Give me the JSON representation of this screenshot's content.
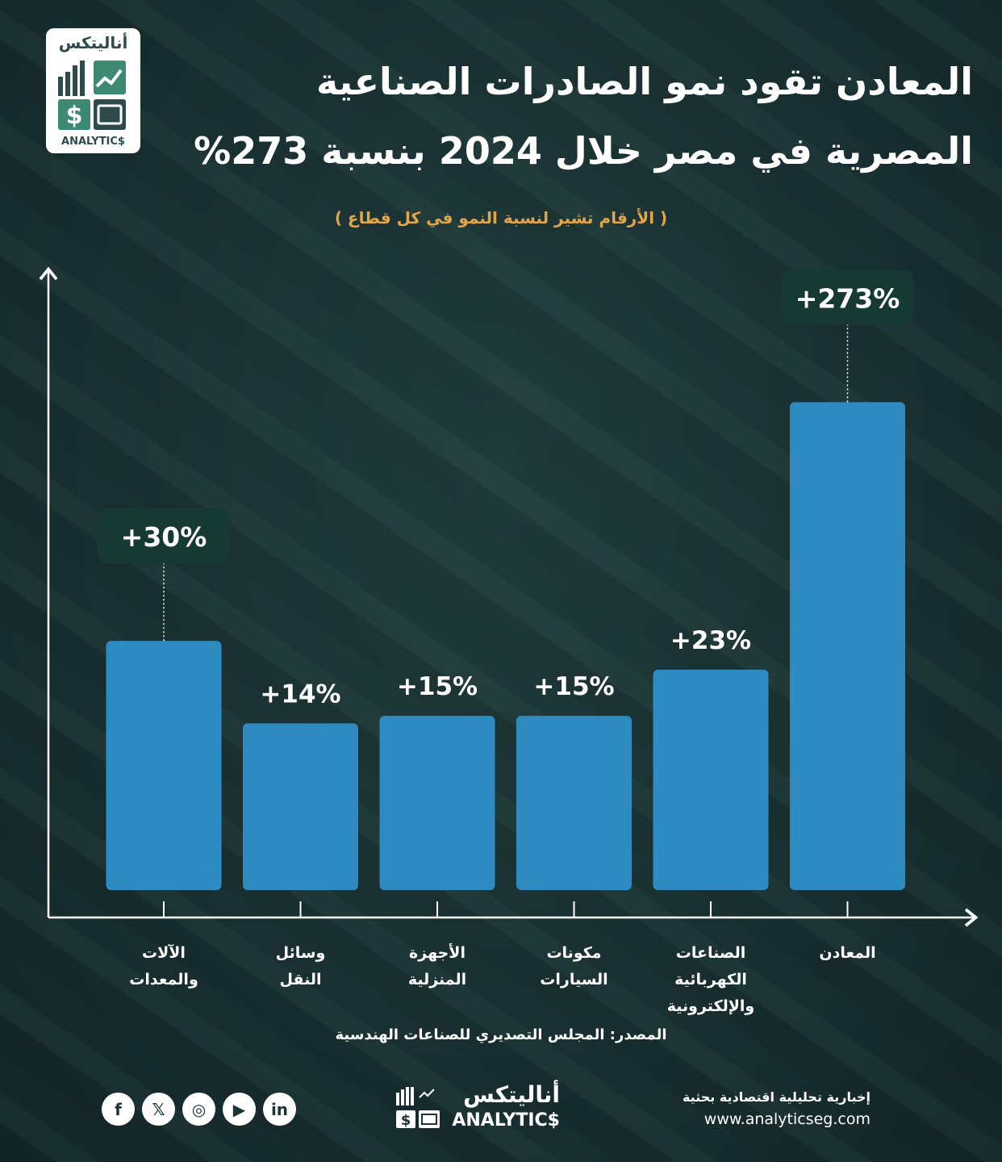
{
  "logo": {
    "arabic": "أناليتكس",
    "english": "ANALYTIC$"
  },
  "title": [
    "المعادن تقود نمو الصادرات الصناعية",
    "المصرية في مصر خلال 2024 بنسبة 273%"
  ],
  "subtitle": "( الأرقام تشير لنسبة النمو في كل قطاع )",
  "chart_data": {
    "type": "bar",
    "categories": [
      "المعادن",
      "الصناعات الكهربائية والإلكترونية",
      "مكونات السيارات",
      "الأجهزة المنزلية",
      "وسائل النقل",
      "الآلات والمعدات"
    ],
    "category_lines": [
      [
        "المعادن"
      ],
      [
        "الصناعات الكهربائية",
        "والإلكترونية"
      ],
      [
        "مكونات",
        "السيارات"
      ],
      [
        "الأجهزة",
        "المنزلية"
      ],
      [
        "وسائل",
        "النقل"
      ],
      [
        "الآلات",
        "والمعدات"
      ]
    ],
    "values": [
      273,
      23,
      15,
      15,
      14,
      30
    ],
    "data_labels": [
      "+273%",
      "+23%",
      "+15%",
      "+15%",
      "+14%",
      "+30%"
    ],
    "unit": "%",
    "direction": "right-to-left",
    "grid": false,
    "colors": {
      "bar": "#2e8bc2",
      "label_bg": "#163a33"
    }
  },
  "source": "المصدر: المجلس التصديري للصناعات الهندسية",
  "footer": {
    "social": [
      {
        "icon": "facebook-icon",
        "glyph": "f"
      },
      {
        "icon": "x-icon",
        "glyph": "𝕏"
      },
      {
        "icon": "instagram-icon",
        "glyph": "◎"
      },
      {
        "icon": "youtube-icon",
        "glyph": "▶"
      },
      {
        "icon": "linkedin-icon",
        "glyph": "in"
      }
    ],
    "logo_arabic": "أناليتكس",
    "logo_english": "ANALYTIC$",
    "tagline": "إخبارية تحليلية اقتصادية بحثية",
    "url": "www.analyticseg.com"
  }
}
